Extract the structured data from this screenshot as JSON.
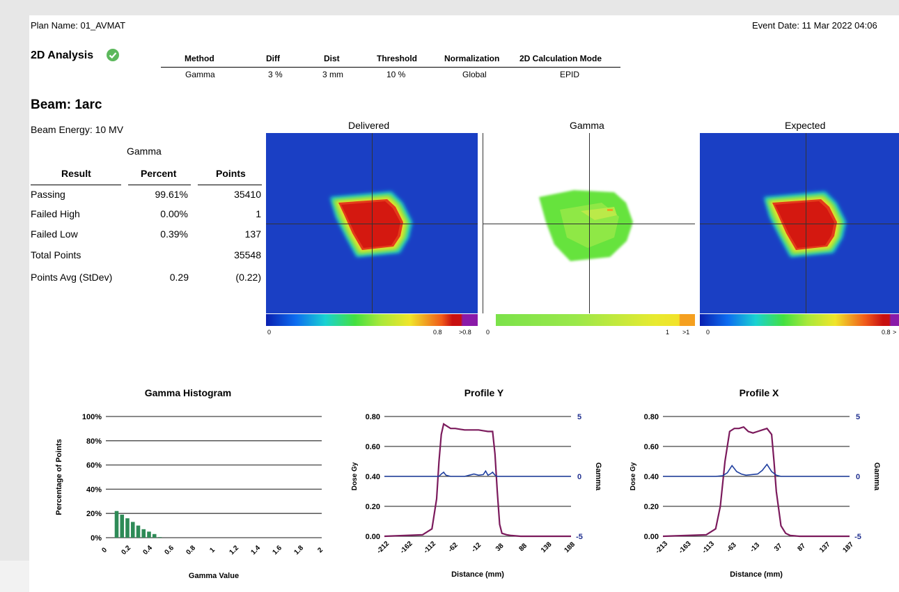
{
  "header": {
    "plan_name": "Plan Name: 01_AVMAT",
    "event_date": "Event Date: 11 Mar 2022 04:06"
  },
  "analysis": {
    "title": "2D Analysis",
    "status_icon": "check-circle-icon",
    "status_color": "#5cb85c",
    "columns": [
      "Method",
      "Diff",
      "Dist",
      "Threshold",
      "Normalization",
      "2D Calculation Mode"
    ],
    "values": [
      "Gamma",
      "3 %",
      "3 mm",
      "10 %",
      "Global",
      "EPID"
    ]
  },
  "beam": {
    "title": "Beam: 1arc",
    "energy": "Beam Energy: 10 MV",
    "group_label": "Gamma",
    "headers": [
      "Result",
      "Percent",
      "Points"
    ],
    "rows": [
      [
        "Passing",
        "99.61%",
        "35410"
      ],
      [
        "Failed High",
        "0.00%",
        "1"
      ],
      [
        "Failed Low",
        "0.39%",
        "137"
      ],
      [
        "Total Points",
        "",
        "35548"
      ],
      [
        "Points Avg (StDev)",
        "0.29",
        "(0.22)"
      ]
    ]
  },
  "maps": {
    "delivered": {
      "title": "Delivered",
      "scale_min": "0",
      "scale_max": "0.8",
      "scale_over": ">0.8"
    },
    "gamma": {
      "title": "Gamma",
      "scale_min": "0",
      "scale_max": "1",
      "scale_over": ">1"
    },
    "expected": {
      "title": "Expected",
      "scale_min": "0",
      "scale_max": "0.8",
      "scale_over": ">"
    }
  },
  "colors": {
    "histogram_bar": "#2e8b57",
    "dose_line": "#7b1a5c",
    "gamma_line": "#1f3f9f",
    "map_background": "#1a3fc4"
  },
  "chart_data": [
    {
      "type": "bar",
      "title": "Gamma Histogram",
      "xlabel": "Gamma Value",
      "ylabel": "Percentage of Points",
      "x_ticks": [
        "0",
        "0.2",
        "0.4",
        "0.6",
        "0.8",
        "1",
        "1.2",
        "1.4",
        "1.6",
        "1.8",
        "2"
      ],
      "y_ticks": [
        "100%",
        "80%",
        "60%",
        "40%",
        "20%",
        "0%"
      ],
      "ylim": [
        0,
        100
      ],
      "xlim": [
        0,
        2
      ],
      "x": [
        0.1,
        0.15,
        0.2,
        0.25,
        0.3,
        0.35,
        0.4,
        0.45,
        0.5
      ],
      "values": [
        22,
        19,
        16,
        13,
        10,
        7,
        5,
        3,
        0.5
      ]
    },
    {
      "type": "line",
      "title": "Profile Y",
      "xlabel": "Distance (mm)",
      "ylabel": "Dose Gy",
      "y2label": "Gamma",
      "x_ticks": [
        "-212",
        "-162",
        "-112",
        "-62",
        "-12",
        "38",
        "88",
        "138",
        "188"
      ],
      "y_ticks": [
        "0.80",
        "0.60",
        "0.40",
        "0.20",
        "0.00"
      ],
      "y2_ticks": [
        "5",
        "0",
        "-5"
      ],
      "xlim": [
        -212,
        188
      ],
      "ylim": [
        0,
        0.8
      ],
      "y2lim": [
        -5,
        5
      ],
      "series": [
        {
          "values_x": [
            -212,
            -130,
            -110,
            -100,
            -95,
            -90,
            -85,
            -80,
            -70,
            -60,
            -50,
            -40,
            -30,
            -20,
            -10,
            0,
            10,
            20,
            25,
            30,
            35,
            40,
            50,
            60,
            80,
            120,
            188
          ],
          "values_y": [
            0,
            0.01,
            0.05,
            0.25,
            0.5,
            0.68,
            0.75,
            0.74,
            0.72,
            0.72,
            0.715,
            0.71,
            0.71,
            0.71,
            0.71,
            0.705,
            0.7,
            0.7,
            0.55,
            0.3,
            0.08,
            0.02,
            0.01,
            0.005,
            0,
            0,
            0
          ]
        },
        {
          "values_x": [
            -212,
            -110,
            -100,
            -95,
            -90,
            -85,
            -80,
            -70,
            -40,
            -30,
            -20,
            -10,
            0,
            5,
            10,
            15,
            20,
            25,
            30,
            40,
            50,
            188
          ],
          "values_y": [
            0,
            0,
            0,
            0,
            0.2,
            0.35,
            0.1,
            0,
            0,
            0.1,
            0.2,
            0.1,
            0.15,
            0.45,
            0.1,
            0.2,
            0.35,
            0.1,
            0,
            0,
            0,
            0
          ]
        }
      ]
    },
    {
      "type": "line",
      "title": "Profile X",
      "xlabel": "Distance (mm)",
      "ylabel": "Dose Gy",
      "y2label": "Gamma",
      "x_ticks": [
        "-213",
        "-163",
        "-113",
        "-63",
        "-13",
        "37",
        "87",
        "137",
        "187"
      ],
      "y_ticks": [
        "0.80",
        "0.60",
        "0.40",
        "0.20",
        "0.00"
      ],
      "y2_ticks": [
        "5",
        "0",
        "-5"
      ],
      "xlim": [
        -213,
        187
      ],
      "ylim": [
        0,
        0.8
      ],
      "y2lim": [
        -5,
        5
      ],
      "series": [
        {
          "values_x": [
            -213,
            -120,
            -100,
            -90,
            -80,
            -70,
            -60,
            -50,
            -40,
            -30,
            -20,
            -10,
            0,
            10,
            20,
            25,
            30,
            40,
            50,
            60,
            80,
            187
          ],
          "values_y": [
            0,
            0.01,
            0.05,
            0.2,
            0.5,
            0.7,
            0.72,
            0.72,
            0.73,
            0.7,
            0.69,
            0.7,
            0.71,
            0.72,
            0.68,
            0.5,
            0.3,
            0.07,
            0.02,
            0.005,
            0,
            0
          ]
        },
        {
          "values_x": [
            -213,
            -100,
            -85,
            -75,
            -65,
            -55,
            -45,
            -35,
            -10,
            0,
            10,
            20,
            30,
            40,
            187
          ],
          "values_y": [
            0,
            0,
            0.05,
            0.3,
            0.9,
            0.4,
            0.2,
            0.1,
            0.2,
            0.5,
            1.0,
            0.4,
            0.1,
            0,
            0
          ]
        }
      ]
    }
  ]
}
